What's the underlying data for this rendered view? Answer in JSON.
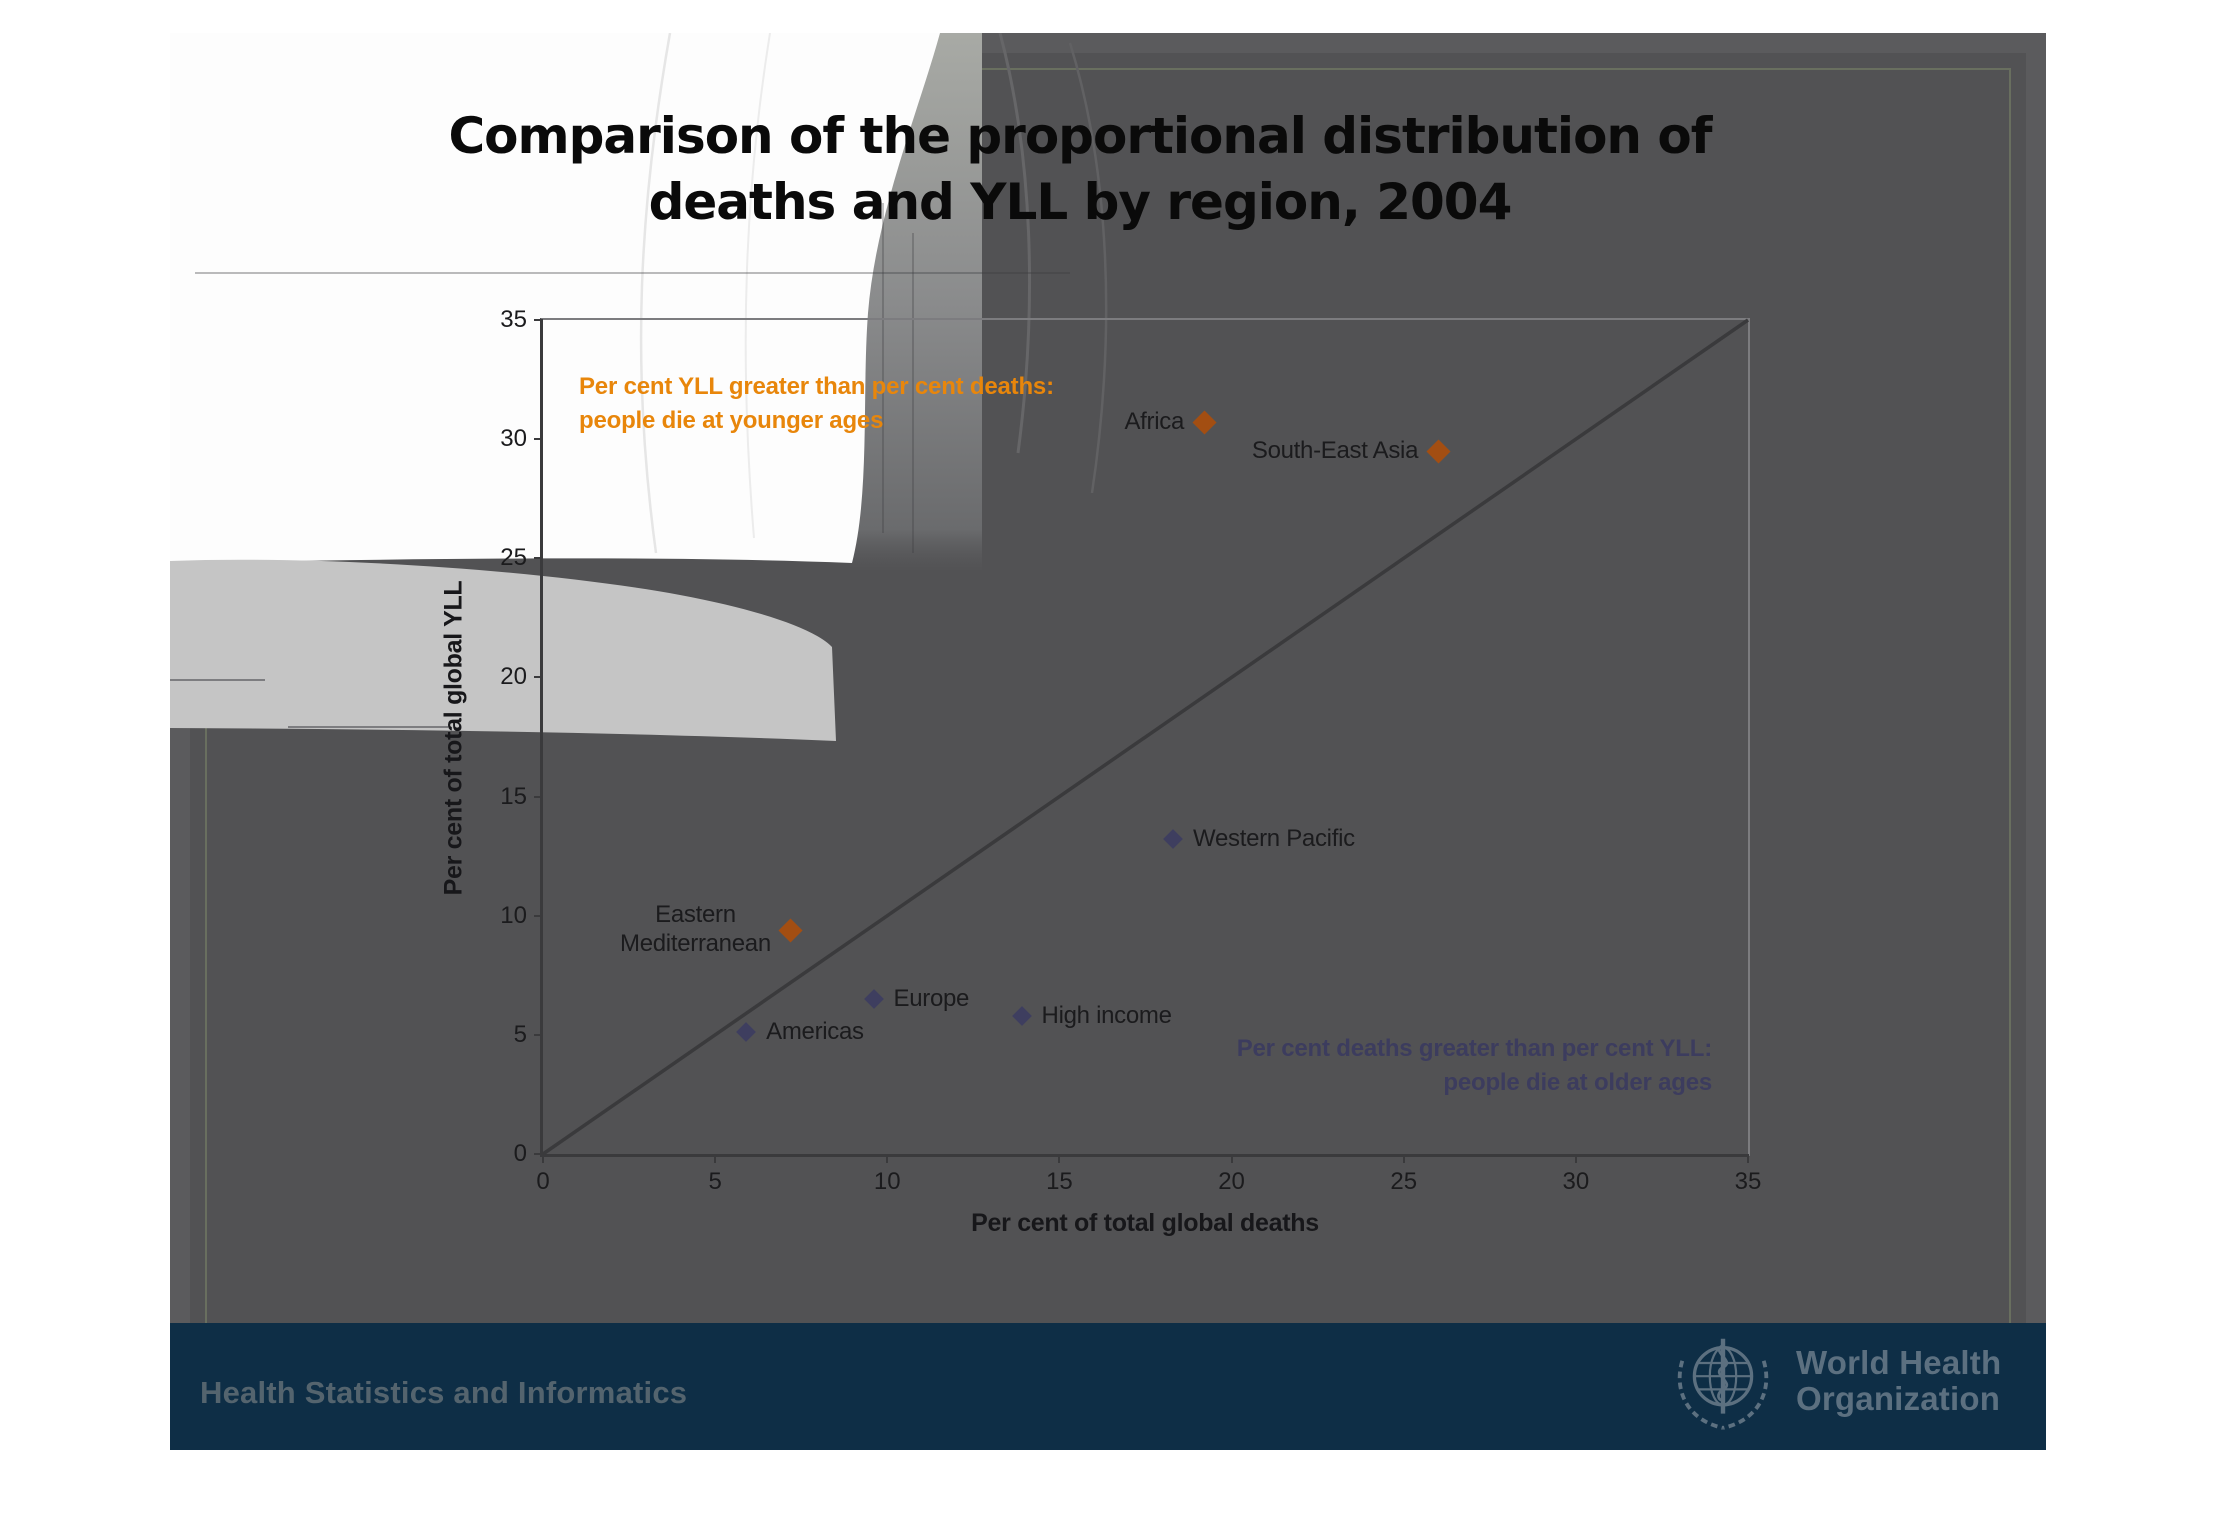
{
  "slide": {
    "title_line1": "Comparison of the proportional distribution of",
    "title_line2": "deaths and YLL by region, 2004"
  },
  "chart_data": {
    "type": "scatter",
    "title": "Comparison of the proportional distribution of deaths and YLL by region, 2004",
    "xlabel": "Per cent of total global deaths",
    "ylabel": "Per cent of total global YLL",
    "xlim": [
      0,
      35
    ],
    "ylim": [
      0,
      35
    ],
    "xticks": [
      0,
      5,
      10,
      15,
      20,
      25,
      30,
      35
    ],
    "yticks": [
      0,
      5,
      10,
      15,
      20,
      25,
      30,
      35
    ],
    "grid": false,
    "diagonal": {
      "from": [
        0,
        0
      ],
      "to": [
        35,
        35
      ],
      "color": "#3A3A3C"
    },
    "marker_colors": {
      "orange": "#A34E12",
      "navy": "#3E3E5F"
    },
    "points": [
      {
        "name": "Africa",
        "x": 19.2,
        "y": 30.7,
        "marker": "orange",
        "label_side": "left"
      },
      {
        "name": "South-East Asia",
        "x": 26.0,
        "y": 29.5,
        "marker": "orange",
        "label_side": "left"
      },
      {
        "name": "Eastern\nMediterranean",
        "x": 7.2,
        "y": 9.4,
        "marker": "orange",
        "label_side": "left"
      },
      {
        "name": "Western Pacific",
        "x": 18.3,
        "y": 13.2,
        "marker": "navy",
        "label_side": "right"
      },
      {
        "name": "Europe",
        "x": 9.6,
        "y": 6.5,
        "marker": "navy",
        "label_side": "right"
      },
      {
        "name": "High income",
        "x": 13.9,
        "y": 5.8,
        "marker": "navy",
        "label_side": "right"
      },
      {
        "name": "Americas",
        "x": 5.9,
        "y": 5.1,
        "marker": "navy",
        "label_side": "right"
      }
    ],
    "annotations": [
      {
        "id": "younger",
        "line1": "Per cent YLL greater than per cent deaths:",
        "line2": "people die at younger ages",
        "color": "#E8860B"
      },
      {
        "id": "older",
        "line1": "Per cent deaths greater than per cent YLL:",
        "line2": "people die at older ages",
        "color": "#3C3C5E"
      }
    ]
  },
  "footer": {
    "department": "Health Statistics and Informatics",
    "logo_line1": "World Health",
    "logo_line2": "Organization"
  },
  "colors": {
    "slide_bg": "#5B5B5D",
    "slide_inner_bg": "#525254",
    "footer_bar": "#0E2E46",
    "footer_text": "#54646E",
    "who_logo": "#5C7080",
    "watermark_band": "#C5C5C5",
    "annotation_orange": "#E8860B",
    "annotation_navy": "#3C3C5E"
  }
}
